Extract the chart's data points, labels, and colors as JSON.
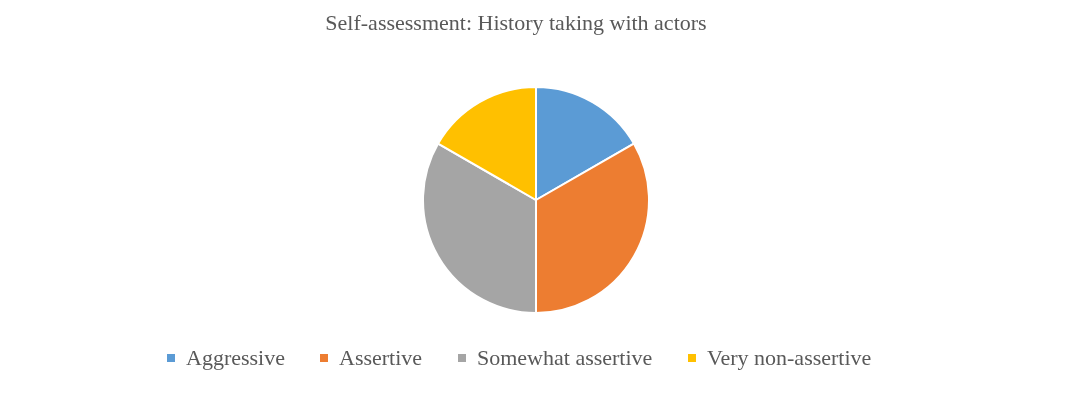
{
  "chart_data": {
    "type": "pie",
    "title": "Self-assessment: History taking with actors",
    "categories": [
      "Aggressive",
      "Assertive",
      "Somewhat assertive",
      "Very non-assertive"
    ],
    "values": [
      16.67,
      33.33,
      33.33,
      16.67
    ],
    "colors": [
      "#5b9bd5",
      "#ed7d31",
      "#a5a5a5",
      "#ffc000"
    ],
    "legend": "bottom"
  }
}
